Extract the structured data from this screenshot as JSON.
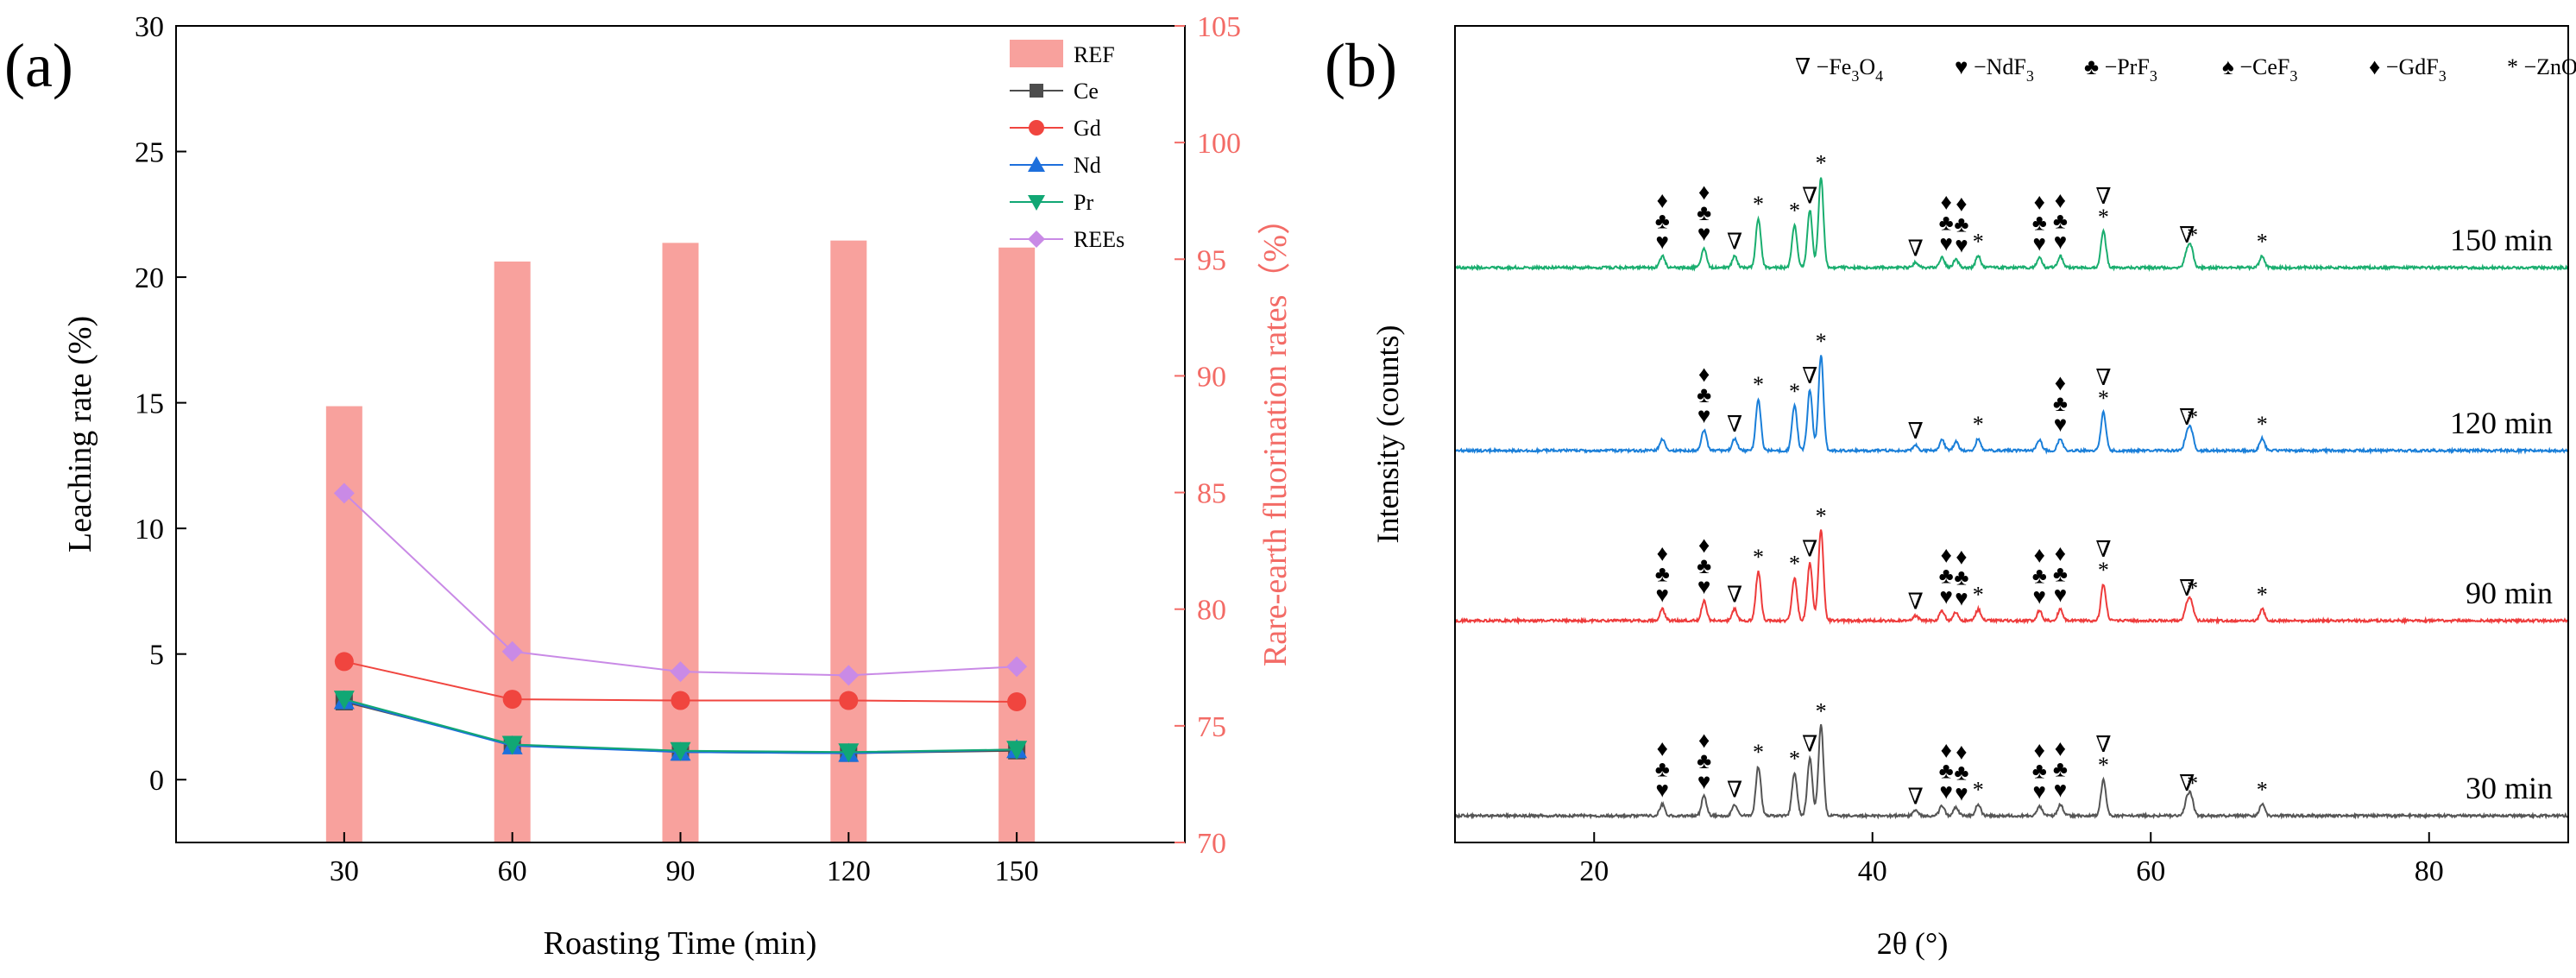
{
  "panels": {
    "a": {
      "label": "(a)"
    },
    "b": {
      "label": "(b)"
    }
  },
  "chart_data": [
    {
      "type": "bar+line",
      "xlabel": "Roasting Time (min)",
      "ylabel": "Leaching rate (%)",
      "y2label": "Rare-earth fluorination rates（%）",
      "categories": [
        30,
        60,
        90,
        120,
        150
      ],
      "xlim": [
        0,
        180
      ],
      "ylim": [
        -2.5,
        30
      ],
      "yticks": [
        0,
        5,
        10,
        15,
        20,
        25,
        30
      ],
      "y2lim": [
        70,
        105
      ],
      "y2ticks": [
        70,
        75,
        80,
        85,
        90,
        95,
        100,
        105
      ],
      "bars": {
        "name": "REF",
        "axis": "right",
        "color": "#f8a19d",
        "values": [
          88.7,
          94.9,
          95.7,
          95.8,
          95.5
        ]
      },
      "series": [
        {
          "name": "Ce",
          "color": "#4d4d4d",
          "marker": "square",
          "values": [
            3.1,
            1.4,
            1.1,
            1.05,
            1.15
          ]
        },
        {
          "name": "Gd",
          "color": "#f0453f",
          "marker": "circle",
          "values": [
            4.7,
            3.2,
            3.15,
            3.15,
            3.1
          ]
        },
        {
          "name": "Nd",
          "color": "#1d6fdc",
          "marker": "triangle",
          "values": [
            3.15,
            1.35,
            1.1,
            1.05,
            1.2
          ]
        },
        {
          "name": "Pr",
          "color": "#11a774",
          "marker": "triangle-down",
          "values": [
            3.2,
            1.4,
            1.15,
            1.1,
            1.2
          ]
        },
        {
          "name": "REEs",
          "color": "#c98ae6",
          "marker": "diamond",
          "values": [
            11.4,
            5.1,
            4.3,
            4.15,
            4.5
          ]
        }
      ],
      "legend_position": "top-right"
    },
    {
      "type": "line",
      "xlabel": "2θ (°)",
      "ylabel": "Intensity (counts)",
      "xlim": [
        10,
        90
      ],
      "xticks": [
        20,
        40,
        60,
        80
      ],
      "legend": [
        {
          "symbol": "∇",
          "phase": "Fe3O4",
          "text": "−Fe",
          "sub": "3",
          "text2": "O",
          "sub2": "4"
        },
        {
          "symbol": "♥",
          "phase": "NdF3",
          "text": "−NdF",
          "sub": "3"
        },
        {
          "symbol": "♣",
          "phase": "PrF3",
          "text": "−PrF",
          "sub": "3"
        },
        {
          "symbol": "♠",
          "phase": "CeF3",
          "text": "−CeF",
          "sub": "3"
        },
        {
          "symbol": "♦",
          "phase": "GdF3",
          "text": "−GdF",
          "sub": "3"
        },
        {
          "symbol": "*",
          "phase": "ZnO",
          "text": "−ZnO"
        }
      ],
      "series": [
        {
          "name": "150 min",
          "color": "#1aae6f"
        },
        {
          "name": "120 min",
          "color": "#1a7fd9"
        },
        {
          "name": "90 min",
          "color": "#ee3b3b"
        },
        {
          "name": "30 min",
          "color": "#555555"
        }
      ],
      "peaks": {
        "ZnO": [
          31.8,
          34.4,
          36.3,
          47.6,
          56.6,
          62.9,
          68.0
        ],
        "Fe3O4": [
          30.1,
          35.5,
          43.1,
          53.4,
          57.0,
          62.6
        ],
        "REF": [
          24.9,
          27.9,
          45.0,
          52.0,
          53.5
        ]
      }
    }
  ]
}
